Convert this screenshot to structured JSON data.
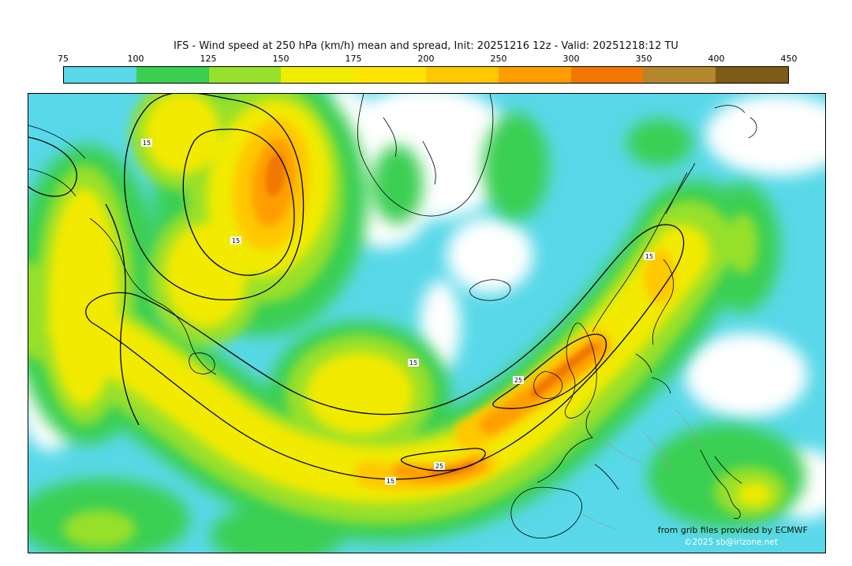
{
  "header": {
    "title": "IFS - Wind speed at 250 hPa (km/h) mean and spread, Init: 20251216 12z - Valid: 20251218:12 TU"
  },
  "colorbar": {
    "tick_labels": [
      "75",
      "100",
      "125",
      "150",
      "175",
      "200",
      "250",
      "300",
      "350",
      "400",
      "450"
    ],
    "segment_colors": [
      "#58d8e8",
      "#3bcf52",
      "#97e02c",
      "#f0ee00",
      "#ffe400",
      "#ffc800",
      "#ff9d00",
      "#f07800",
      "#b5862b",
      "#7d5c16"
    ]
  },
  "map": {
    "spread": {
      "v15": "15",
      "v25": "25"
    },
    "credit_line1": "from grib files provided by ECMWF",
    "credit_line2": "©2025 sb@irizone.net"
  },
  "chart_data": {
    "type": "heatmap",
    "title": "IFS - Wind speed at 250 hPa (km/h) mean and spread",
    "model": "IFS",
    "variable": "Wind speed at 250 hPa",
    "units": "km/h",
    "init": "20251216 12z",
    "valid": "20251218:12 TU",
    "colorscale_levels": [
      75,
      100,
      125,
      150,
      175,
      200,
      250,
      300,
      350,
      400,
      450
    ],
    "colorscale_colors": [
      "#58d8e8",
      "#3bcf52",
      "#97e02c",
      "#f0ee00",
      "#ffe400",
      "#ffc800",
      "#ff9d00",
      "#f07800",
      "#b5862b",
      "#7d5c16"
    ],
    "spread_contour_labels_visible": [
      15,
      25
    ],
    "data_source": "ECMWF"
  }
}
